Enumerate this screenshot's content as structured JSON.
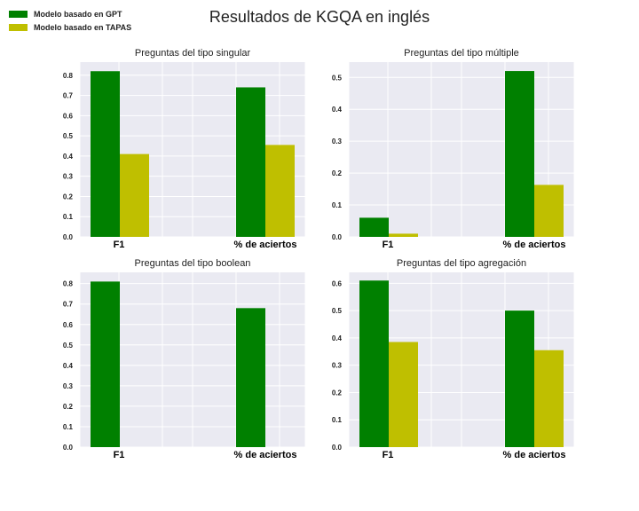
{
  "suptitle": "Resultados de KGQA en inglés",
  "legend": [
    {
      "label": "Modelo basado en GPT",
      "color": "#008000"
    },
    {
      "label": "Modelo basado en TAPAS",
      "color": "#bfbf00"
    }
  ],
  "chart_data": [
    {
      "type": "bar",
      "title": "Preguntas del tipo singular",
      "categories": [
        "F1",
        "% de aciertos"
      ],
      "series": [
        {
          "name": "Modelo basado en GPT",
          "values": [
            0.82,
            0.74
          ]
        },
        {
          "name": "Modelo basado en TAPAS",
          "values": [
            0.41,
            0.455
          ]
        }
      ],
      "ylim": [
        0,
        0.865
      ],
      "yticks": [
        "0.0",
        "0.1",
        "0.2",
        "0.3",
        "0.4",
        "0.5",
        "0.6",
        "0.7",
        "0.8"
      ],
      "grid": true
    },
    {
      "type": "bar",
      "title": "Preguntas del tipo múltiple",
      "categories": [
        "F1",
        "% de aciertos"
      ],
      "series": [
        {
          "name": "Modelo basado en GPT",
          "values": [
            0.06,
            0.52
          ]
        },
        {
          "name": "Modelo basado en TAPAS",
          "values": [
            0.01,
            0.163
          ]
        }
      ],
      "ylim": [
        0,
        0.548
      ],
      "yticks": [
        "0.0",
        "0.1",
        "0.2",
        "0.3",
        "0.4",
        "0.5"
      ],
      "grid": true
    },
    {
      "type": "bar",
      "title": "Preguntas del tipo boolean",
      "categories": [
        "F1",
        "% de aciertos"
      ],
      "series": [
        {
          "name": "Modelo basado en GPT",
          "values": [
            0.81,
            0.68
          ]
        },
        {
          "name": "Modelo basado en TAPAS",
          "values": [
            0,
            0
          ]
        }
      ],
      "ylim": [
        0,
        0.855
      ],
      "yticks": [
        "0.0",
        "0.1",
        "0.2",
        "0.3",
        "0.4",
        "0.5",
        "0.6",
        "0.7",
        "0.8"
      ],
      "grid": true
    },
    {
      "type": "bar",
      "title": "Preguntas del tipo agregación",
      "categories": [
        "F1",
        "% de aciertos"
      ],
      "series": [
        {
          "name": "Modelo basado en GPT",
          "values": [
            0.61,
            0.5
          ]
        },
        {
          "name": "Modelo basado en TAPAS",
          "values": [
            0.385,
            0.355
          ]
        }
      ],
      "ylim": [
        0,
        0.64
      ],
      "yticks": [
        "0.0",
        "0.1",
        "0.2",
        "0.3",
        "0.4",
        "0.5",
        "0.6"
      ],
      "grid": true
    }
  ]
}
